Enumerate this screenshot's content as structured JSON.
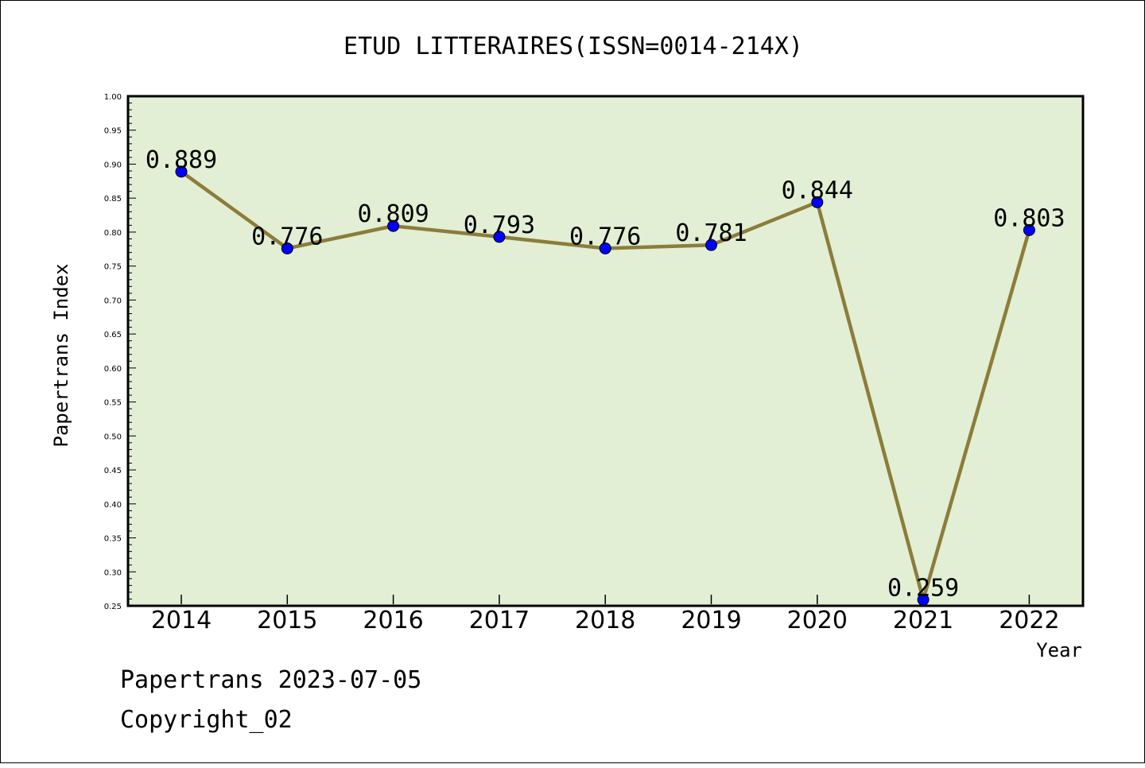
{
  "chart_data": {
    "type": "line",
    "title": "ETUD LITTERAIRES(ISSN=0014-214X)",
    "xlabel": "Year",
    "ylabel": "Papertrans Index",
    "categories": [
      "2014",
      "2015",
      "2016",
      "2017",
      "2018",
      "2019",
      "2020",
      "2021",
      "2022"
    ],
    "values": [
      0.889,
      0.776,
      0.809,
      0.793,
      0.776,
      0.781,
      0.844,
      0.259,
      0.803
    ],
    "data_labels": [
      "0.889",
      "0.776",
      "0.809",
      "0.793",
      "0.776",
      "0.781",
      "0.844",
      "0.259",
      "0.803"
    ],
    "ylim": [
      0.25,
      1.0
    ],
    "yticks": [
      "0.25",
      "0.30",
      "0.35",
      "0.40",
      "0.45",
      "0.50",
      "0.55",
      "0.60",
      "0.65",
      "0.70",
      "0.75",
      "0.80",
      "0.85",
      "0.90",
      "0.95",
      "1.00"
    ],
    "grid": false,
    "legend": "none",
    "colors": {
      "plot_background": "#e2efd5",
      "line": "#8b7d3a",
      "marker": "#0000ff"
    }
  },
  "footer": {
    "date_line": "Papertrans 2023-07-05",
    "copyright": "Copyright_02"
  }
}
